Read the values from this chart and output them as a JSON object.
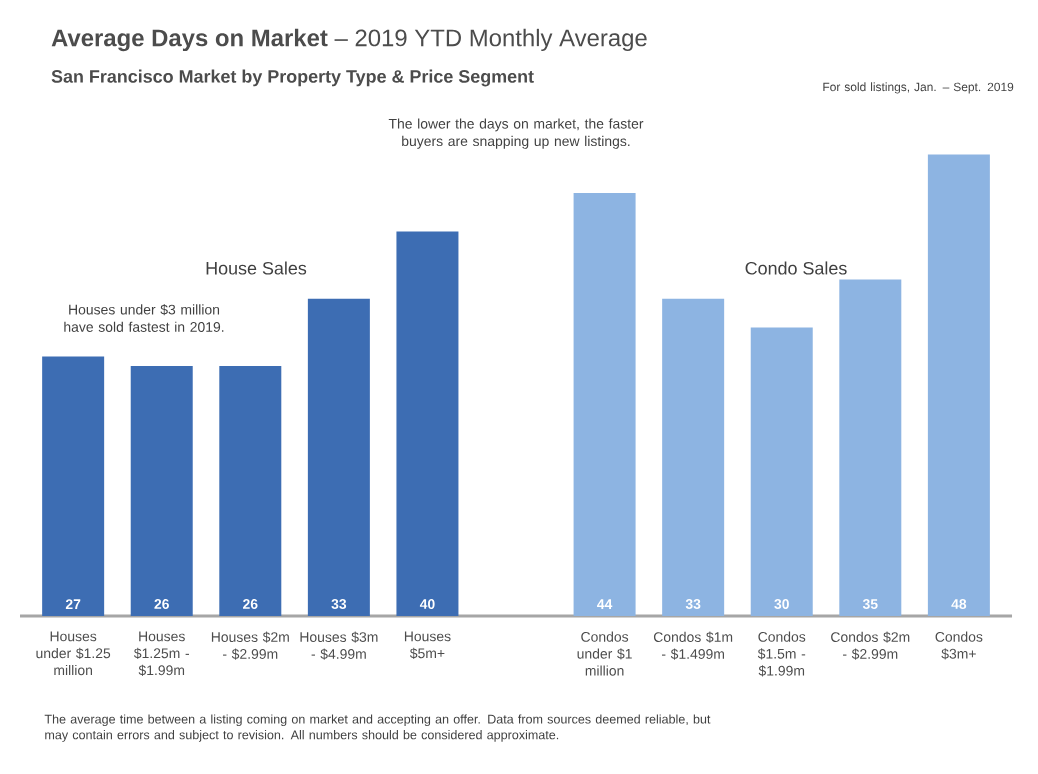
{
  "chart_data": {
    "type": "bar",
    "title": "**Average Days on Market** – 2019 YTD Monthly Average",
    "subtitle": "San Francisco Market by Property Type & Price Segment",
    "categories": [
      "Houses under $1.25 million",
      "Houses $1.25m - $1.99m",
      "Houses $2m - $2.99m",
      "Houses $3m - $4.99m",
      "Houses $5m+",
      null,
      "Condos under $1 million",
      "Condos $1m - $1.499m",
      "Condos $1.5m - $1.99m",
      "Condos $2m - $2.99m",
      "Condos $3m+"
    ],
    "values": [
      27,
      26,
      26,
      33,
      40,
      null,
      44,
      33,
      30,
      35,
      48
    ],
    "colors": [
      "#3d6db3",
      "#3d6db3",
      "#3d6db3",
      "#3d6db3",
      "#3d6db3",
      "#3d6db3",
      "#8db4e2",
      "#8db4e2",
      "#8db4e2",
      "#8db4e2",
      "#8db4e2"
    ],
    "data_labels": true,
    "tick_labels": "x",
    "annotations": [
      "For sold listings, Jan. – Sept. 2019",
      "The lower the days on market, the faster buyers are snapping up new listings.",
      "House Sales",
      "Houses under $3 million have sold fastest in 2019.",
      "Condo Sales",
      "The average time between a listing coming on market and accepting an offer. Data from sources deemed reliable, but may contain errors and subject to revision. All numbers should be considered approximate."
    ]
  }
}
